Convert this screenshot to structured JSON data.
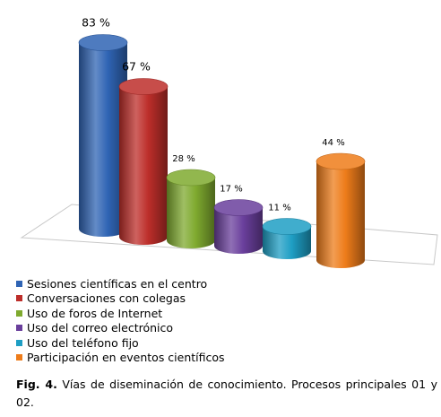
{
  "chart_data": {
    "type": "bar",
    "style": "3d-cylinder",
    "categories": [
      "Sesiones científicas en el centro",
      "Conversaciones con colegas",
      "Uso de foros de Internet",
      "Uso del correo electrónico",
      "Uso del teléfono fijo",
      "Participación en eventos científicos"
    ],
    "values": [
      83,
      67,
      28,
      17,
      11,
      44
    ],
    "data_labels": [
      "83 %",
      "67 %",
      "28 %",
      "17 %",
      "11 %",
      "44 %"
    ],
    "colors": [
      "#2f64b4",
      "#bd2e2a",
      "#7faa2f",
      "#6a3f9c",
      "#1e9ec4",
      "#ee7c1a"
    ],
    "ylim": [
      0,
      100
    ],
    "grid": false,
    "legend_position": "bottom"
  },
  "caption": {
    "label": "Fig. 4.",
    "text": " Vías de diseminación de conocimiento. Procesos principales 01 y 02."
  }
}
